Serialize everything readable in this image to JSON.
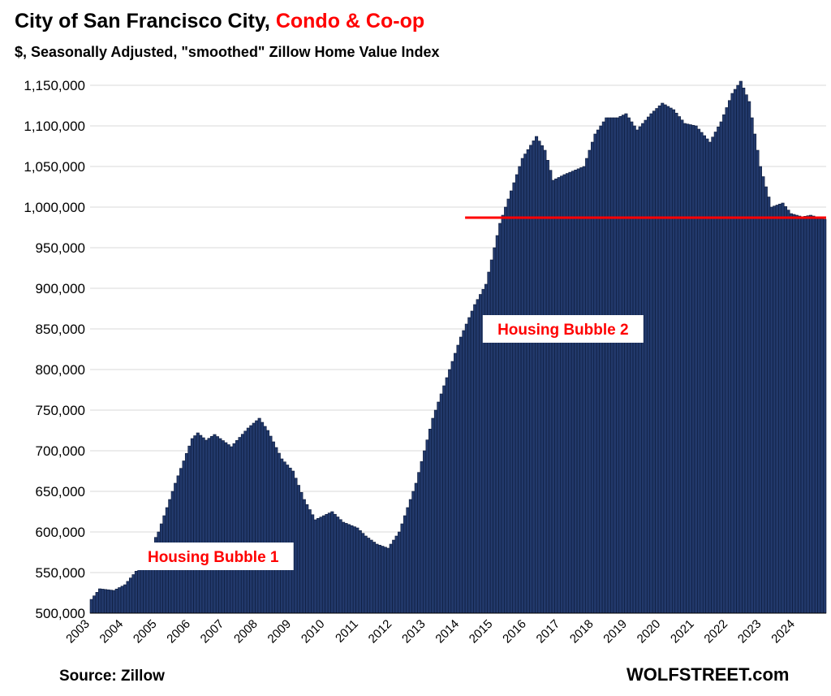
{
  "header": {
    "title_main": "City of San Francisco City, ",
    "title_accent": "Condo & Co-op",
    "subtitle": "$, Seasonally Adjusted, \"smoothed\" Zillow Home Value Index"
  },
  "footer": {
    "source": "Source: Zillow",
    "brand": "WOLFSTREET.com"
  },
  "colors": {
    "bar_fill": "#22396b",
    "bar_stroke": "#0c1a3a",
    "reference_line": "#ff0000",
    "accent": "#ff0000",
    "gridline": "#d9d9d9"
  },
  "chart_data": {
    "type": "bar",
    "granularity": "",
    "ylim": [
      500000,
      1150000
    ],
    "ytick_labels": [
      "500,000",
      "550,000",
      "600,000",
      "650,000",
      "700,000",
      "750,000",
      "800,000",
      "850,000",
      "900,000",
      "950,000",
      "1,000,000",
      "1,050,000",
      "1,100,000",
      "1,150,000"
    ],
    "xtick_labels": [
      "2003",
      "2004",
      "2005",
      "2006",
      "2007",
      "2008",
      "2009",
      "2010",
      "2011",
      "2012",
      "2013",
      "2014",
      "2015",
      "2016",
      "2017",
      "2018",
      "2019",
      "2020",
      "2021",
      "2022",
      "2023",
      "2024"
    ],
    "grid": true,
    "reference_line": {
      "value": 987000,
      "from": "2014-03",
      "to": "2024-11"
    },
    "annotations": [
      {
        "text": "Housing Bubble 1",
        "x": "2006-09",
        "y": 570000
      },
      {
        "text": "Housing Bubble 2",
        "x": "2017-02",
        "y": 850000
      }
    ],
    "anchors": [
      [
        "2003-01",
        517000
      ],
      [
        "2003-04",
        530000
      ],
      [
        "2003-09",
        528000
      ],
      [
        "2004-01",
        535000
      ],
      [
        "2004-07",
        560000
      ],
      [
        "2005-01",
        600000
      ],
      [
        "2005-07",
        660000
      ],
      [
        "2006-01",
        715000
      ],
      [
        "2006-03",
        722000
      ],
      [
        "2006-06",
        713000
      ],
      [
        "2006-09",
        720000
      ],
      [
        "2007-03",
        705000
      ],
      [
        "2007-09",
        728000
      ],
      [
        "2008-01",
        740000
      ],
      [
        "2008-04",
        725000
      ],
      [
        "2008-09",
        690000
      ],
      [
        "2009-01",
        675000
      ],
      [
        "2009-05",
        640000
      ],
      [
        "2009-09",
        615000
      ],
      [
        "2010-03",
        625000
      ],
      [
        "2010-07",
        612000
      ],
      [
        "2010-12",
        605000
      ],
      [
        "2011-03",
        595000
      ],
      [
        "2011-07",
        585000
      ],
      [
        "2011-11",
        580000
      ],
      [
        "2012-03",
        600000
      ],
      [
        "2012-09",
        660000
      ],
      [
        "2013-03",
        740000
      ],
      [
        "2013-09",
        800000
      ],
      [
        "2014-01",
        840000
      ],
      [
        "2014-06",
        880000
      ],
      [
        "2014-10",
        905000
      ],
      [
        "2015-03",
        980000
      ],
      [
        "2015-06",
        1010000
      ],
      [
        "2015-11",
        1060000
      ],
      [
        "2016-04",
        1087000
      ],
      [
        "2016-07",
        1070000
      ],
      [
        "2016-10",
        1033000
      ],
      [
        "2017-02",
        1040000
      ],
      [
        "2017-09",
        1050000
      ],
      [
        "2018-01",
        1090000
      ],
      [
        "2018-05",
        1110000
      ],
      [
        "2018-09",
        1110000
      ],
      [
        "2018-12",
        1115000
      ],
      [
        "2019-04",
        1095000
      ],
      [
        "2019-09",
        1115000
      ],
      [
        "2020-01",
        1128000
      ],
      [
        "2020-05",
        1120000
      ],
      [
        "2020-09",
        1103000
      ],
      [
        "2021-01",
        1100000
      ],
      [
        "2021-06",
        1080000
      ],
      [
        "2021-10",
        1105000
      ],
      [
        "2022-02",
        1140000
      ],
      [
        "2022-05",
        1155000
      ],
      [
        "2022-08",
        1130000
      ],
      [
        "2022-12",
        1050000
      ],
      [
        "2023-04",
        1000000
      ],
      [
        "2023-08",
        1005000
      ],
      [
        "2023-11",
        992000
      ],
      [
        "2024-03",
        988000
      ],
      [
        "2024-06",
        990000
      ],
      [
        "2024-11",
        985000
      ]
    ]
  }
}
